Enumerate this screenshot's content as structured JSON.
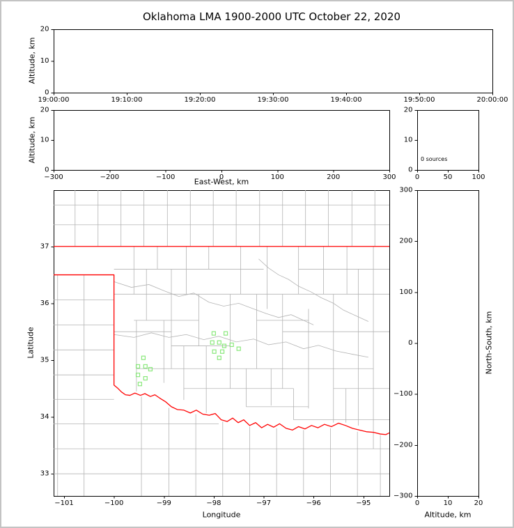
{
  "title": "Oklahoma LMA 1900-2000 UTC October 22, 2020",
  "colors": {
    "state_border": "#ff0000",
    "county_line": "#b3b3b3",
    "station_marker": "#8ae87c",
    "axis": "#000000",
    "background": "#ffffff",
    "frame": "#c3c3c3"
  },
  "chart_data": [
    {
      "id": "time_height",
      "type": "scatter",
      "ylabel": "Altitude, km",
      "xtick_labels": [
        "19:00:00",
        "19:10:00",
        "19:20:00",
        "19:30:00",
        "19:40:00",
        "19:50:00",
        "20:00:00"
      ],
      "ylim": [
        0,
        20
      ],
      "yticks": [
        0,
        10,
        20
      ],
      "points": []
    },
    {
      "id": "ew_height",
      "type": "scatter",
      "xlabel": "East-West, km",
      "ylabel": "Altitude, km",
      "xlim": [
        -300,
        300
      ],
      "xticks": [
        -300,
        -200,
        -100,
        0,
        100,
        200,
        300
      ],
      "ylim": [
        0,
        20
      ],
      "yticks": [
        0,
        10,
        20
      ],
      "points": []
    },
    {
      "id": "source_histogram",
      "type": "scatter",
      "annotation": "0 sources",
      "xlim": [
        0,
        100
      ],
      "xticks": [
        0,
        50,
        100
      ],
      "ylim": [
        0,
        20
      ],
      "yticks": [
        0,
        10,
        20
      ],
      "points": []
    },
    {
      "id": "plan_view",
      "type": "scatter",
      "xlabel": "Longitude",
      "ylabel": "Latitude",
      "xlim": [
        -101.21,
        -94.48
      ],
      "xticks": [
        -101,
        -100,
        -99,
        -98,
        -97,
        -96,
        -95
      ],
      "ylim": [
        32.61,
        37.99
      ],
      "yticks": [
        33,
        34,
        35,
        36,
        37
      ],
      "stations": [
        [
          -98.0,
          35.47
        ],
        [
          -97.76,
          35.47
        ],
        [
          -98.03,
          35.31
        ],
        [
          -97.89,
          35.31
        ],
        [
          -97.79,
          35.25
        ],
        [
          -97.99,
          35.15
        ],
        [
          -97.83,
          35.15
        ],
        [
          -97.64,
          35.27
        ],
        [
          -97.89,
          35.04
        ],
        [
          -97.5,
          35.2
        ],
        [
          -99.41,
          35.04
        ],
        [
          -99.52,
          34.89
        ],
        [
          -99.37,
          34.89
        ],
        [
          -99.27,
          34.84
        ],
        [
          -99.52,
          34.74
        ],
        [
          -99.37,
          34.68
        ],
        [
          -99.48,
          34.58
        ]
      ],
      "state_border": [
        [
          [
            -101.21,
            37.0
          ],
          [
            -94.48,
            37.0
          ]
        ],
        [
          [
            -101.21,
            36.5
          ],
          [
            -100.0,
            36.5
          ],
          [
            -100.0,
            34.56
          ],
          [
            -99.93,
            34.51
          ],
          [
            -99.85,
            34.44
          ],
          [
            -99.77,
            34.39
          ],
          [
            -99.68,
            34.38
          ],
          [
            -99.58,
            34.42
          ],
          [
            -99.47,
            34.38
          ],
          [
            -99.38,
            34.41
          ],
          [
            -99.27,
            34.36
          ],
          [
            -99.18,
            34.39
          ],
          [
            -99.08,
            34.33
          ],
          [
            -98.97,
            34.27
          ],
          [
            -98.85,
            34.18
          ],
          [
            -98.73,
            34.13
          ],
          [
            -98.6,
            34.12
          ],
          [
            -98.47,
            34.07
          ],
          [
            -98.35,
            34.12
          ],
          [
            -98.22,
            34.05
          ],
          [
            -98.09,
            34.03
          ],
          [
            -97.97,
            34.06
          ],
          [
            -97.85,
            33.95
          ],
          [
            -97.73,
            33.92
          ],
          [
            -97.62,
            33.98
          ],
          [
            -97.51,
            33.9
          ],
          [
            -97.4,
            33.95
          ],
          [
            -97.28,
            33.85
          ],
          [
            -97.16,
            33.9
          ],
          [
            -97.04,
            33.81
          ],
          [
            -96.92,
            33.87
          ],
          [
            -96.8,
            33.82
          ],
          [
            -96.68,
            33.88
          ],
          [
            -96.55,
            33.8
          ],
          [
            -96.42,
            33.77
          ],
          [
            -96.3,
            33.83
          ],
          [
            -96.17,
            33.79
          ],
          [
            -96.04,
            33.85
          ],
          [
            -95.91,
            33.81
          ],
          [
            -95.78,
            33.87
          ],
          [
            -95.64,
            33.83
          ],
          [
            -95.5,
            33.89
          ],
          [
            -95.36,
            33.85
          ],
          [
            -95.22,
            33.8
          ],
          [
            -95.08,
            33.77
          ],
          [
            -94.94,
            33.74
          ],
          [
            -94.8,
            33.73
          ],
          [
            -94.66,
            33.7
          ],
          [
            -94.55,
            33.69
          ],
          [
            -94.48,
            33.72
          ]
        ]
      ],
      "county_segments": [
        [
          -100.78,
          37.0,
          -100.78,
          37.99
        ],
        [
          -100.32,
          37.0,
          -100.32,
          37.99
        ],
        [
          -99.86,
          37.0,
          -99.86,
          37.99
        ],
        [
          -99.4,
          37.0,
          -99.4,
          37.99
        ],
        [
          -98.93,
          37.0,
          -98.93,
          37.99
        ],
        [
          -98.47,
          37.0,
          -98.47,
          37.99
        ],
        [
          -98.01,
          37.0,
          -98.01,
          37.99
        ],
        [
          -97.55,
          37.0,
          -97.55,
          37.99
        ],
        [
          -97.08,
          37.0,
          -97.08,
          37.99
        ],
        [
          -96.62,
          37.0,
          -96.62,
          37.99
        ],
        [
          -96.16,
          37.0,
          -96.16,
          37.99
        ],
        [
          -95.7,
          37.0,
          -95.7,
          37.99
        ],
        [
          -95.23,
          37.0,
          -95.23,
          37.99
        ],
        [
          -94.77,
          37.0,
          -94.77,
          37.99
        ],
        [
          -101.21,
          37.38,
          -94.48,
          37.38
        ],
        [
          -101.21,
          37.73,
          -94.48,
          37.73
        ],
        [
          -101.13,
          36.5,
          -101.13,
          32.61
        ],
        [
          -100.6,
          36.5,
          -100.6,
          32.61
        ],
        [
          -101.21,
          36.06,
          -100.0,
          36.06
        ],
        [
          -101.21,
          35.62,
          -100.0,
          35.62
        ],
        [
          -101.21,
          35.18,
          -100.0,
          35.18
        ],
        [
          -101.21,
          34.74,
          -100.0,
          34.74
        ],
        [
          -101.21,
          34.31,
          -100.0,
          34.31
        ],
        [
          -101.21,
          33.88,
          -97.9,
          33.88
        ],
        [
          -101.21,
          33.44,
          -94.48,
          33.44
        ],
        [
          -101.21,
          33.0,
          -94.48,
          33.0
        ],
        [
          -99.45,
          34.36,
          -99.45,
          32.61
        ],
        [
          -98.9,
          34.16,
          -98.9,
          32.61
        ],
        [
          -98.36,
          34.05,
          -98.36,
          32.61
        ],
        [
          -97.82,
          33.92,
          -97.82,
          32.61
        ],
        [
          -97.28,
          33.83,
          -97.28,
          32.61
        ],
        [
          -96.74,
          33.8,
          -96.74,
          32.61
        ],
        [
          -96.2,
          33.77,
          -96.2,
          32.61
        ],
        [
          -95.66,
          33.8,
          -95.66,
          32.61
        ],
        [
          -95.12,
          33.74,
          -95.12,
          32.61
        ],
        [
          -94.66,
          33.68,
          -94.66,
          32.61
        ],
        [
          -99.6,
          37.0,
          -99.6,
          36.16
        ],
        [
          -99.13,
          37.0,
          -99.13,
          36.6
        ],
        [
          -98.55,
          37.0,
          -98.55,
          36.16
        ],
        [
          -98.1,
          37.0,
          -98.1,
          36.6
        ],
        [
          -97.46,
          37.0,
          -97.46,
          36.16
        ],
        [
          -96.93,
          37.0,
          -96.93,
          35.9
        ],
        [
          -96.3,
          37.0,
          -96.3,
          36.16
        ],
        [
          -95.8,
          37.0,
          -95.8,
          36.16
        ],
        [
          -95.33,
          37.0,
          -95.33,
          36.16
        ],
        [
          -94.8,
          37.0,
          -94.8,
          33.44
        ],
        [
          -99.35,
          36.6,
          -99.35,
          35.7
        ],
        [
          -98.85,
          36.6,
          -98.85,
          34.85
        ],
        [
          -98.3,
          36.16,
          -98.3,
          35.25
        ],
        [
          -97.67,
          36.16,
          -97.67,
          34.5
        ],
        [
          -97.14,
          36.16,
          -97.14,
          34.85
        ],
        [
          -96.62,
          36.16,
          -96.62,
          34.5
        ],
        [
          -96.1,
          35.9,
          -96.1,
          34.15
        ],
        [
          -95.6,
          36.16,
          -95.6,
          33.9
        ],
        [
          -95.1,
          36.6,
          -95.1,
          33.85
        ],
        [
          -99.0,
          35.7,
          -99.0,
          34.6
        ],
        [
          -99.55,
          35.7,
          -99.55,
          34.45
        ],
        [
          -98.6,
          35.25,
          -98.6,
          34.3
        ],
        [
          -98.15,
          35.25,
          -98.15,
          34.07
        ],
        [
          -97.35,
          34.85,
          -97.35,
          34.18
        ],
        [
          -96.85,
          34.85,
          -96.85,
          34.2
        ],
        [
          -96.4,
          34.5,
          -96.4,
          33.95
        ],
        [
          -95.35,
          34.5,
          -95.35,
          33.9
        ],
        [
          -100.0,
          36.6,
          -97.0,
          36.6
        ],
        [
          -96.3,
          36.6,
          -94.48,
          36.6
        ],
        [
          -100.0,
          36.16,
          -94.48,
          36.16
        ],
        [
          -99.6,
          35.7,
          -98.3,
          35.7
        ],
        [
          -97.14,
          35.7,
          -96.1,
          35.7
        ],
        [
          -100.0,
          35.5,
          -98.85,
          35.5
        ],
        [
          -96.62,
          35.5,
          -94.48,
          35.5
        ],
        [
          -98.85,
          35.25,
          -97.67,
          35.25
        ],
        [
          -99.55,
          34.85,
          -94.8,
          34.85
        ],
        [
          -98.6,
          34.5,
          -96.4,
          34.5
        ],
        [
          -95.6,
          34.5,
          -94.48,
          34.5
        ],
        [
          -97.35,
          34.18,
          -96.1,
          34.18
        ],
        [
          -96.4,
          33.95,
          -94.48,
          33.95
        ]
      ],
      "county_rivers": [
        [
          [
            -100.0,
            36.38
          ],
          [
            -99.65,
            36.28
          ],
          [
            -99.3,
            36.33
          ],
          [
            -99.0,
            36.22
          ],
          [
            -98.7,
            36.12
          ],
          [
            -98.4,
            36.18
          ],
          [
            -98.1,
            36.02
          ],
          [
            -97.8,
            35.95
          ],
          [
            -97.5,
            36.0
          ],
          [
            -97.2,
            35.9
          ],
          [
            -96.95,
            35.82
          ],
          [
            -96.7,
            35.75
          ],
          [
            -96.45,
            35.8
          ],
          [
            -96.2,
            35.7
          ],
          [
            -96.0,
            35.62
          ]
        ],
        [
          [
            -100.0,
            35.45
          ],
          [
            -99.6,
            35.4
          ],
          [
            -99.25,
            35.48
          ],
          [
            -98.9,
            35.4
          ],
          [
            -98.55,
            35.45
          ],
          [
            -98.2,
            35.36
          ],
          [
            -97.9,
            35.42
          ],
          [
            -97.55,
            35.32
          ],
          [
            -97.2,
            35.37
          ],
          [
            -96.9,
            35.27
          ],
          [
            -96.55,
            35.32
          ],
          [
            -96.2,
            35.2
          ],
          [
            -95.9,
            35.26
          ],
          [
            -95.55,
            35.16
          ],
          [
            -95.2,
            35.1
          ],
          [
            -94.9,
            35.05
          ]
        ],
        [
          [
            -97.1,
            36.78
          ],
          [
            -96.9,
            36.62
          ],
          [
            -96.7,
            36.5
          ],
          [
            -96.5,
            36.42
          ],
          [
            -96.3,
            36.3
          ],
          [
            -96.05,
            36.2
          ],
          [
            -95.85,
            36.1
          ],
          [
            -95.6,
            36.0
          ],
          [
            -95.4,
            35.88
          ],
          [
            -95.15,
            35.78
          ],
          [
            -94.9,
            35.68
          ]
        ]
      ]
    },
    {
      "id": "ns_height",
      "type": "scatter",
      "xlabel": "Altitude, km",
      "ylabel": "North-South, km",
      "xlim": [
        0,
        20
      ],
      "xticks": [
        0,
        10,
        20
      ],
      "ylim": [
        -300,
        300
      ],
      "yticks": [
        -300,
        -200,
        -100,
        0,
        100,
        200,
        300
      ],
      "points": []
    }
  ]
}
